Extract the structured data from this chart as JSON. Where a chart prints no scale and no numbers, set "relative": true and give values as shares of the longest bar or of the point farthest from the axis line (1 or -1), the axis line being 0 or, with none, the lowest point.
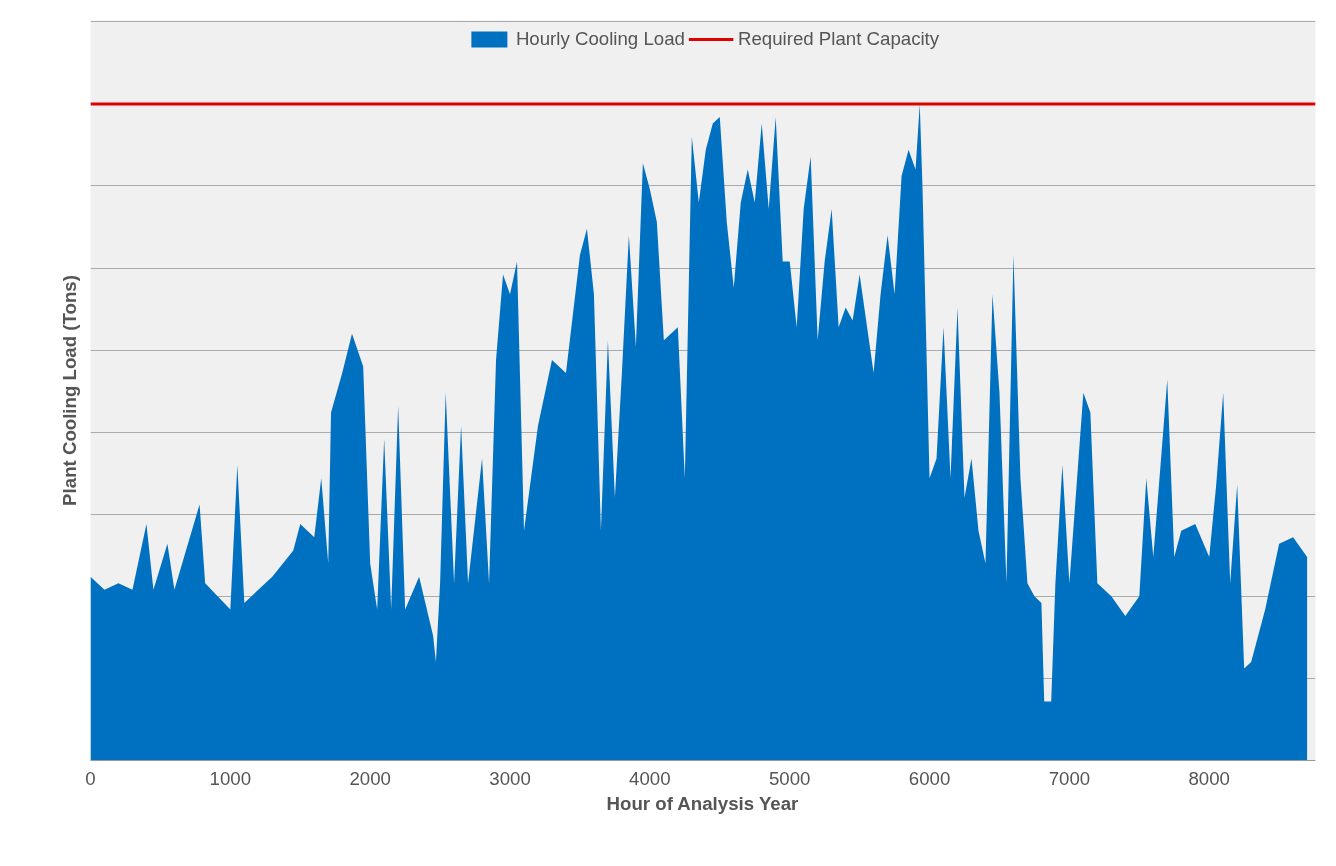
{
  "chart_data": {
    "type": "area",
    "relative": true,
    "xlabel": "Hour of Analysis Year",
    "ylabel": "Plant Cooling Load (Tons)",
    "xlim": [
      0,
      8760
    ],
    "xticks": [
      0,
      1000,
      2000,
      3000,
      4000,
      5000,
      6000,
      7000,
      8000
    ],
    "grid": "y",
    "legend": "top",
    "series": [
      {
        "name": "Hourly Cooling Load",
        "color": "#0070c0",
        "x": [
          0,
          50,
          100,
          200,
          300,
          400,
          450,
          550,
          600,
          780,
          820,
          1000,
          1050,
          1100,
          1300,
          1450,
          1500,
          1600,
          1650,
          1700,
          1720,
          1800,
          1870,
          1950,
          2000,
          2050,
          2100,
          2150,
          2200,
          2250,
          2350,
          2450,
          2470,
          2500,
          2540,
          2600,
          2650,
          2700,
          2800,
          2850,
          2900,
          2950,
          3000,
          3050,
          3100,
          3200,
          3300,
          3400,
          3500,
          3550,
          3600,
          3650,
          3700,
          3750,
          3800,
          3850,
          3900,
          3950,
          4000,
          4050,
          4100,
          4200,
          4250,
          4300,
          4350,
          4400,
          4450,
          4500,
          4550,
          4600,
          4650,
          4700,
          4750,
          4800,
          4850,
          4900,
          4950,
          5000,
          5050,
          5100,
          5150,
          5200,
          5250,
          5300,
          5350,
          5400,
          5450,
          5500,
          5600,
          5650,
          5700,
          5750,
          5800,
          5850,
          5900,
          5930,
          5950,
          6000,
          6050,
          6100,
          6150,
          6200,
          6250,
          6300,
          6350,
          6400,
          6450,
          6500,
          6550,
          6600,
          6650,
          6700,
          6750,
          6800,
          6820,
          6870,
          6900,
          6950,
          7000,
          7100,
          7150,
          7200,
          7300,
          7400,
          7500,
          7550,
          7600,
          7700,
          7750,
          7800,
          7900,
          8000,
          8050,
          8100,
          8150,
          8200,
          8250,
          8300,
          8400,
          8500,
          8600,
          8700
        ],
        "values": [
          0.28,
          0.27,
          0.26,
          0.27,
          0.26,
          0.36,
          0.26,
          0.33,
          0.26,
          0.39,
          0.27,
          0.23,
          0.45,
          0.24,
          0.28,
          0.32,
          0.36,
          0.34,
          0.43,
          0.3,
          0.53,
          0.59,
          0.65,
          0.6,
          0.3,
          0.23,
          0.49,
          0.23,
          0.54,
          0.23,
          0.28,
          0.19,
          0.15,
          0.27,
          0.56,
          0.27,
          0.51,
          0.27,
          0.46,
          0.27,
          0.61,
          0.74,
          0.71,
          0.76,
          0.35,
          0.51,
          0.61,
          0.59,
          0.77,
          0.81,
          0.71,
          0.35,
          0.64,
          0.4,
          0.59,
          0.8,
          0.63,
          0.91,
          0.87,
          0.82,
          0.64,
          0.66,
          0.43,
          0.95,
          0.85,
          0.93,
          0.97,
          0.98,
          0.82,
          0.72,
          0.85,
          0.9,
          0.85,
          0.97,
          0.84,
          0.98,
          0.76,
          0.76,
          0.66,
          0.84,
          0.92,
          0.64,
          0.76,
          0.84,
          0.66,
          0.69,
          0.67,
          0.74,
          0.59,
          0.71,
          0.8,
          0.71,
          0.89,
          0.93,
          0.9,
          1.0,
          0.87,
          0.43,
          0.46,
          0.66,
          0.43,
          0.69,
          0.4,
          0.46,
          0.35,
          0.3,
          0.71,
          0.56,
          0.27,
          0.77,
          0.43,
          0.27,
          0.25,
          0.24,
          0.09,
          0.09,
          0.27,
          0.45,
          0.27,
          0.56,
          0.53,
          0.27,
          0.25,
          0.22,
          0.25,
          0.43,
          0.31,
          0.58,
          0.31,
          0.35,
          0.36,
          0.31,
          0.42,
          0.56,
          0.27,
          0.42,
          0.14,
          0.15,
          0.23,
          0.33,
          0.34,
          0.31
        ]
      },
      {
        "name": "Required Plant Capacity",
        "type": "line",
        "color": "#e00000",
        "x": [
          0,
          8760
        ],
        "values": [
          1.0,
          1.0
        ]
      }
    ]
  }
}
